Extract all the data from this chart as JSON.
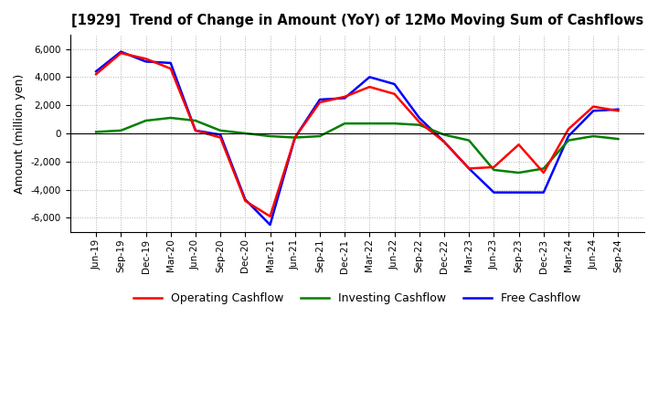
{
  "title": "[1929]  Trend of Change in Amount (YoY) of 12Mo Moving Sum of Cashflows",
  "ylabel": "Amount (million yen)",
  "background_color": "#ffffff",
  "grid_color": "#b0b0b0",
  "x_labels": [
    "Jun-19",
    "Sep-19",
    "Dec-19",
    "Mar-20",
    "Jun-20",
    "Sep-20",
    "Dec-20",
    "Mar-21",
    "Jun-21",
    "Sep-21",
    "Dec-21",
    "Mar-22",
    "Jun-22",
    "Sep-22",
    "Dec-22",
    "Mar-23",
    "Jun-23",
    "Sep-23",
    "Dec-23",
    "Mar-24",
    "Jun-24",
    "Sep-24"
  ],
  "operating_cashflow": [
    4200,
    5700,
    5300,
    4600,
    200,
    -300,
    -4800,
    -5900,
    -300,
    2200,
    2600,
    3300,
    2800,
    800,
    -600,
    -2500,
    -2400,
    -800,
    -2800,
    300,
    1900,
    1600
  ],
  "investing_cashflow": [
    100,
    200,
    900,
    1100,
    900,
    200,
    0,
    -200,
    -300,
    -200,
    700,
    700,
    700,
    600,
    -100,
    -500,
    -2600,
    -2800,
    -2500,
    -500,
    -200,
    -400
  ],
  "free_cashflow": [
    4400,
    5800,
    5100,
    5000,
    200,
    -100,
    -4700,
    -6500,
    -300,
    2400,
    2500,
    4000,
    3500,
    1100,
    -600,
    -2500,
    -4200,
    -4200,
    -4200,
    -200,
    1600,
    1700
  ],
  "operating_color": "#ff0000",
  "investing_color": "#008000",
  "free_color": "#0000ff",
  "ylim": [
    -7000,
    7000
  ],
  "yticks": [
    -6000,
    -4000,
    -2000,
    0,
    2000,
    4000,
    6000
  ]
}
